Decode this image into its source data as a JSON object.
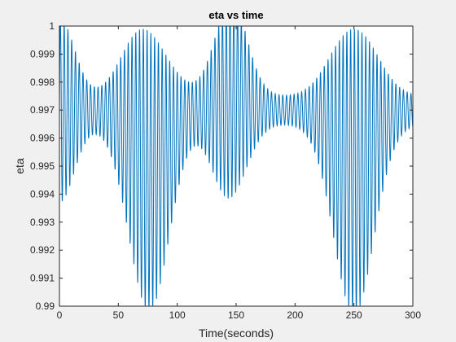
{
  "chart_data": {
    "type": "line",
    "title": "eta vs time",
    "xlabel": "Time(seconds)",
    "ylabel": "eta",
    "xlim": [
      0,
      300
    ],
    "ylim": [
      0.99,
      1
    ],
    "xticks": [
      "0",
      "50",
      "100",
      "150",
      "200",
      "250",
      "300"
    ],
    "yticks": [
      "0.99",
      "0.991",
      "0.992",
      "0.993",
      "0.994",
      "0.995",
      "0.996",
      "0.997",
      "0.998",
      "0.999",
      "1"
    ],
    "grid": false,
    "series": [
      {
        "color": "#0072BD",
        "description_values": {
          "mean": 0.997,
          "beat_maxima_t": [
            0,
            75,
            145,
            250
          ],
          "beat_minima_t": [
            30,
            125,
            190,
            290
          ],
          "peak_high": 0.9999,
          "peak_low": 0.9908,
          "approx_period_s": 3.2,
          "x_start": 0,
          "x_end": 300
        }
      }
    ]
  }
}
